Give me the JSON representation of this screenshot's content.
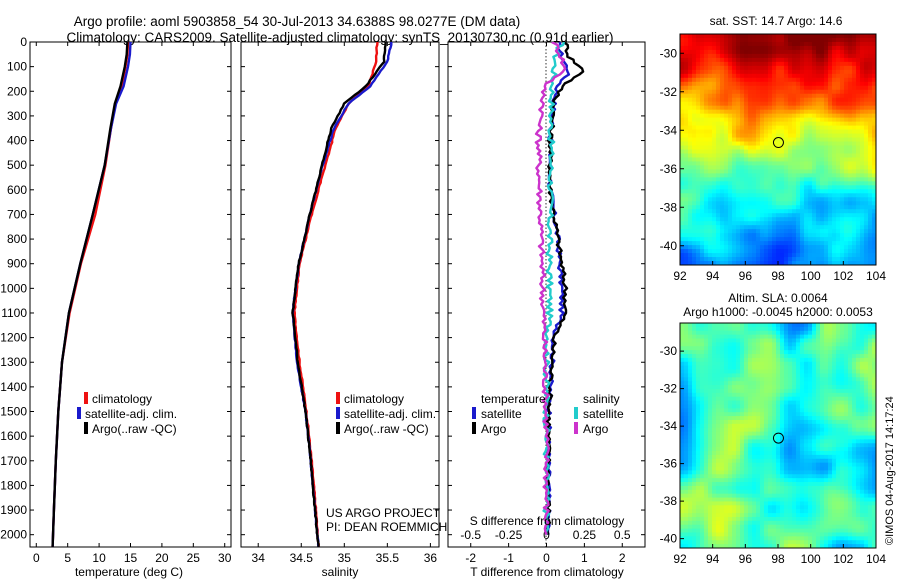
{
  "header": {
    "title_line1": "Argo profile: aoml 5903858_54 30-Jul-2013 34.6388S 98.0277E (DM data)",
    "title_line2": "Climatology: CARS2009. Satellite-adjusted climatology: synTS_20130730.nc (0.91d earlier)"
  },
  "colors": {
    "climatology": "#ee1111",
    "satellite": "#1a1acc",
    "argo": "#000000",
    "argo_salinity": "#cc33cc",
    "satellite_salinity": "#22cccc",
    "map_marker": "#000000"
  },
  "chart_data": [
    {
      "type": "line",
      "id": "temperature",
      "xlabel": "temperature (deg C)",
      "ylabel": "",
      "xlim": [
        -1,
        31
      ],
      "ylim": [
        2050,
        0
      ],
      "xticks": [
        0,
        5,
        10,
        15,
        20,
        25,
        30
      ],
      "yticks": [
        0,
        100,
        200,
        300,
        400,
        500,
        600,
        700,
        800,
        900,
        1000,
        1100,
        1200,
        1300,
        1400,
        1500,
        1600,
        1700,
        1800,
        1900,
        2000
      ],
      "legend": [
        "climatology",
        "satellite-adj. clim.",
        "Argo(..raw -QC)"
      ],
      "series": [
        {
          "name": "climatology",
          "color": "#ee1111",
          "points": [
            [
              14.6,
              0
            ],
            [
              14.5,
              50
            ],
            [
              14.2,
              100
            ],
            [
              13.6,
              180
            ],
            [
              12.6,
              250
            ],
            [
              11.9,
              350
            ],
            [
              11.0,
              500
            ],
            [
              9.4,
              700
            ],
            [
              7.1,
              900
            ],
            [
              5.3,
              1100
            ],
            [
              4.1,
              1300
            ],
            [
              3.5,
              1500
            ],
            [
              3.1,
              1700
            ],
            [
              2.8,
              1900
            ],
            [
              2.6,
              2050
            ]
          ]
        },
        {
          "name": "satellite-adj. clim.",
          "color": "#1a1acc",
          "points": [
            [
              15.0,
              0
            ],
            [
              14.9,
              50
            ],
            [
              14.6,
              100
            ],
            [
              13.9,
              180
            ],
            [
              12.7,
              250
            ],
            [
              11.9,
              350
            ],
            [
              10.9,
              500
            ],
            [
              9.0,
              700
            ],
            [
              7.0,
              900
            ],
            [
              5.2,
              1100
            ],
            [
              4.1,
              1300
            ],
            [
              3.5,
              1500
            ],
            [
              3.1,
              1700
            ],
            [
              2.8,
              1900
            ],
            [
              2.6,
              2050
            ]
          ]
        },
        {
          "name": "Argo(..raw -QC)",
          "color": "#000000",
          "points": [
            [
              14.5,
              0
            ],
            [
              14.4,
              50
            ],
            [
              14.1,
              100
            ],
            [
              13.4,
              180
            ],
            [
              12.5,
              250
            ],
            [
              11.8,
              350
            ],
            [
              10.9,
              500
            ],
            [
              9.0,
              700
            ],
            [
              7.0,
              900
            ],
            [
              5.2,
              1100
            ],
            [
              4.1,
              1300
            ],
            [
              3.5,
              1500
            ],
            [
              3.1,
              1700
            ],
            [
              2.8,
              1900
            ],
            [
              2.6,
              2050
            ]
          ]
        }
      ]
    },
    {
      "type": "line",
      "id": "salinity",
      "xlabel": "salinity",
      "xlim": [
        33.8,
        36.1
      ],
      "ylim": [
        2050,
        0
      ],
      "xticks": [
        34,
        34.5,
        35,
        35.5,
        36
      ],
      "legend": [
        "climatology",
        "satellite-adj. clim.",
        "Argo(..raw -QC)"
      ],
      "series": [
        {
          "name": "climatology",
          "color": "#ee1111",
          "points": [
            [
              35.38,
              0
            ],
            [
              35.37,
              80
            ],
            [
              35.28,
              180
            ],
            [
              35.05,
              250
            ],
            [
              34.9,
              350
            ],
            [
              34.78,
              500
            ],
            [
              34.62,
              700
            ],
            [
              34.48,
              900
            ],
            [
              34.42,
              1100
            ],
            [
              34.48,
              1300
            ],
            [
              34.56,
              1500
            ],
            [
              34.62,
              1700
            ],
            [
              34.67,
              1900
            ],
            [
              34.7,
              2050
            ]
          ]
        },
        {
          "name": "satellite-adj. clim.",
          "color": "#1a1acc",
          "points": [
            [
              35.55,
              0
            ],
            [
              35.5,
              80
            ],
            [
              35.3,
              180
            ],
            [
              35.05,
              250
            ],
            [
              34.88,
              350
            ],
            [
              34.75,
              500
            ],
            [
              34.6,
              700
            ],
            [
              34.47,
              900
            ],
            [
              34.4,
              1100
            ],
            [
              34.45,
              1300
            ],
            [
              34.55,
              1500
            ],
            [
              34.61,
              1700
            ],
            [
              34.66,
              1900
            ],
            [
              34.7,
              2050
            ]
          ]
        },
        {
          "name": "Argo(..raw -QC)",
          "color": "#000000",
          "points": [
            [
              35.48,
              0
            ],
            [
              35.46,
              80
            ],
            [
              35.25,
              180
            ],
            [
              35.0,
              250
            ],
            [
              34.85,
              350
            ],
            [
              34.74,
              500
            ],
            [
              34.6,
              700
            ],
            [
              34.47,
              900
            ],
            [
              34.4,
              1100
            ],
            [
              34.46,
              1300
            ],
            [
              34.55,
              1500
            ],
            [
              34.61,
              1700
            ],
            [
              34.66,
              1900
            ],
            [
              34.7,
              2050
            ]
          ]
        }
      ]
    },
    {
      "type": "line",
      "id": "difference",
      "xlabel_t": "T difference from climatology",
      "xlabel_s": "S difference from climatology",
      "xlim_t": [
        -2.6,
        2.6
      ],
      "xticks_t": [
        -2,
        -1,
        0,
        1,
        2
      ],
      "xticks_s": [
        -0.5,
        -0.25,
        0,
        0.25,
        0.5
      ],
      "s_scale": 4,
      "legend_t_header": "temperature",
      "legend_s_header": "salinity",
      "legend_t": [
        "satellite",
        "Argo"
      ],
      "legend_s": [
        "satellite",
        "Argo"
      ],
      "series": [
        {
          "name": "T satellite",
          "color": "#1a1acc",
          "points": [
            [
              0.3,
              0
            ],
            [
              0.4,
              60
            ],
            [
              0.6,
              120
            ],
            [
              0.3,
              180
            ],
            [
              0.2,
              250
            ],
            [
              0.1,
              400
            ],
            [
              0.1,
              600
            ],
            [
              0.3,
              800
            ],
            [
              0.4,
              1000
            ],
            [
              0.4,
              1100
            ],
            [
              0.2,
              1200
            ],
            [
              0.1,
              1400
            ],
            [
              0.05,
              1600
            ],
            [
              0.05,
              2000
            ]
          ]
        },
        {
          "name": "T Argo",
          "color": "#000000",
          "points": [
            [
              0.5,
              0
            ],
            [
              0.6,
              60
            ],
            [
              1.0,
              120
            ],
            [
              0.4,
              180
            ],
            [
              0.2,
              250
            ],
            [
              0.1,
              400
            ],
            [
              0.1,
              600
            ],
            [
              0.3,
              800
            ],
            [
              0.5,
              1000
            ],
            [
              0.5,
              1100
            ],
            [
              0.2,
              1200
            ],
            [
              0.1,
              1400
            ],
            [
              0.05,
              1600
            ],
            [
              0.05,
              2000
            ]
          ]
        },
        {
          "name": "S satellite",
          "color": "#22cccc",
          "points": [
            [
              0.1,
              0
            ],
            [
              0.06,
              60
            ],
            [
              0.04,
              180
            ],
            [
              0.03,
              300
            ],
            [
              0.03,
              500
            ],
            [
              0.02,
              800
            ],
            [
              0.02,
              1100
            ],
            [
              0.0,
              1300
            ],
            [
              0.0,
              1600
            ],
            [
              0.0,
              2000
            ]
          ]
        },
        {
          "name": "S Argo",
          "color": "#cc33cc",
          "points": [
            [
              0.05,
              0
            ],
            [
              0.1,
              60
            ],
            [
              0.12,
              120
            ],
            [
              -0.02,
              180
            ],
            [
              -0.02,
              250
            ],
            [
              -0.05,
              350
            ],
            [
              -0.05,
              500
            ],
            [
              -0.04,
              700
            ],
            [
              -0.03,
              900
            ],
            [
              -0.02,
              1100
            ],
            [
              -0.01,
              1300
            ],
            [
              0.0,
              1600
            ],
            [
              0.0,
              2000
            ]
          ]
        }
      ]
    },
    {
      "type": "heatmap",
      "id": "sst_map",
      "title": "sat. SST: 14.7 Argo: 14.6",
      "xlim": [
        92,
        104
      ],
      "ylim": [
        -41,
        -29
      ],
      "xticks": [
        92,
        94,
        96,
        98,
        100,
        102,
        104
      ],
      "yticks": [
        -30,
        -32,
        -34,
        -36,
        -38,
        -40
      ],
      "marker": [
        98.0277,
        -34.6388
      ]
    },
    {
      "type": "heatmap",
      "id": "sla_map",
      "title": "Altim. SLA: 0.0064",
      "subtitle": "Argo h1000: -0.0045 h2000: 0.0053",
      "xlim": [
        92,
        104
      ],
      "ylim": [
        -40.5,
        -28.5
      ],
      "xticks": [
        92,
        94,
        96,
        98,
        100,
        102,
        104
      ],
      "yticks": [
        -30,
        -32,
        -34,
        -36,
        -38,
        -40
      ],
      "marker": [
        98.0277,
        -34.6388
      ]
    }
  ],
  "annotations": {
    "project_line1": "US ARGO PROJECT",
    "project_line2": "PI: DEAN ROEMMICH",
    "copyright": "©IMOS 04-Aug-2017 14:17:24"
  }
}
